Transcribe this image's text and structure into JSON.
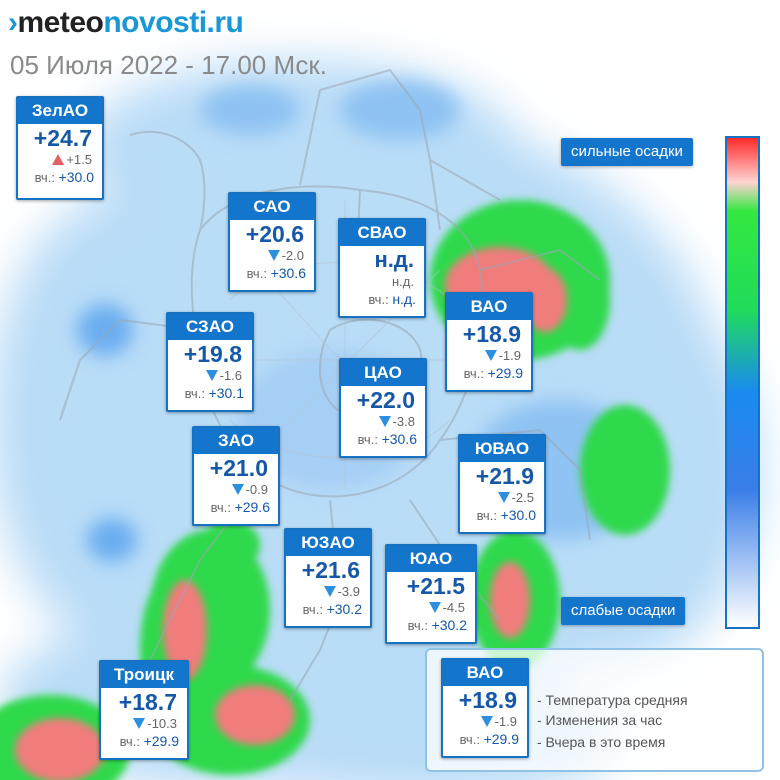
{
  "header": {
    "logo_mark": "›",
    "logo_part1": "meteo",
    "logo_part2": "novosti.ru",
    "subtitle": "05 Июля 2022 - 17.00 Мск."
  },
  "scale": {
    "top_label": "сильные осадки",
    "bottom_label": "слабые осадки",
    "colors": [
      "#ff2a2a",
      "#34e840",
      "#1a8af0",
      "#ffffff"
    ]
  },
  "districts": [
    {
      "id": "zelao",
      "name": "ЗелАО",
      "temp": "+24.7",
      "trend": "up",
      "change": "+1.5",
      "yest_label": "вч.:",
      "yest": "+30.0"
    },
    {
      "id": "sao",
      "name": "САО",
      "temp": "+20.6",
      "trend": "down",
      "change": "-2.0",
      "yest_label": "вч.:",
      "yest": "+30.6"
    },
    {
      "id": "svao",
      "name": "СВАО",
      "temp": "н.д.",
      "trend": "none",
      "change": "н.д.",
      "yest_label": "вч.:",
      "yest": "н.д."
    },
    {
      "id": "vao",
      "name": "ВАО",
      "temp": "+18.9",
      "trend": "down",
      "change": "-1.9",
      "yest_label": "вч.:",
      "yest": "+29.9"
    },
    {
      "id": "szao",
      "name": "СЗАО",
      "temp": "+19.8",
      "trend": "down",
      "change": "-1.6",
      "yest_label": "вч.:",
      "yest": "+30.1"
    },
    {
      "id": "cao",
      "name": "ЦАО",
      "temp": "+22.0",
      "trend": "down",
      "change": "-3.8",
      "yest_label": "вч.:",
      "yest": "+30.6"
    },
    {
      "id": "zao",
      "name": "ЗАО",
      "temp": "+21.0",
      "trend": "down",
      "change": "-0.9",
      "yest_label": "вч.:",
      "yest": "+29.6"
    },
    {
      "id": "yuvao",
      "name": "ЮВАО",
      "temp": "+21.9",
      "trend": "down",
      "change": "-2.5",
      "yest_label": "вч.:",
      "yest": "+30.0"
    },
    {
      "id": "yuzao",
      "name": "ЮЗАО",
      "temp": "+21.6",
      "trend": "down",
      "change": "-3.9",
      "yest_label": "вч.:",
      "yest": "+30.2"
    },
    {
      "id": "yuao",
      "name": "ЮАО",
      "temp": "+21.5",
      "trend": "down",
      "change": "-4.5",
      "yest_label": "вч.:",
      "yest": "+30.2"
    },
    {
      "id": "troick",
      "name": "Троицк",
      "temp": "+18.7",
      "trend": "down",
      "change": "-10.3",
      "yest_label": "вч.:",
      "yest": "+29.9"
    }
  ],
  "legend": {
    "sample": {
      "name": "ВАО",
      "temp": "+18.9",
      "trend": "down",
      "change": "-1.9",
      "yest_label": "вч.:",
      "yest": "+29.9"
    },
    "line1": "- Температура средняя",
    "line2": "- Изменения за час",
    "line3": "- Вчера в это время"
  }
}
